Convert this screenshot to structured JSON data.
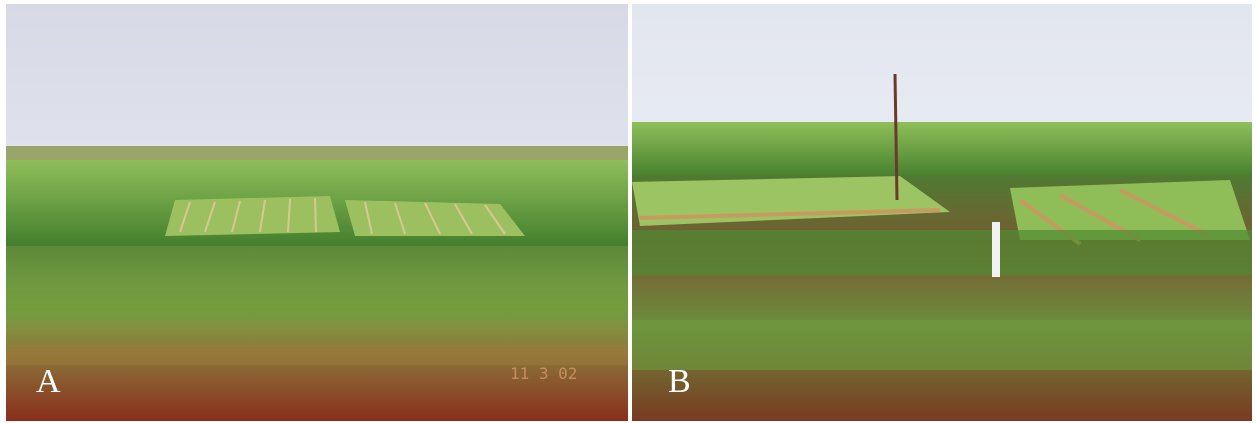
{
  "panels": [
    {
      "label": "A",
      "date_stamp": "11 3 02"
    },
    {
      "label": "B"
    }
  ]
}
